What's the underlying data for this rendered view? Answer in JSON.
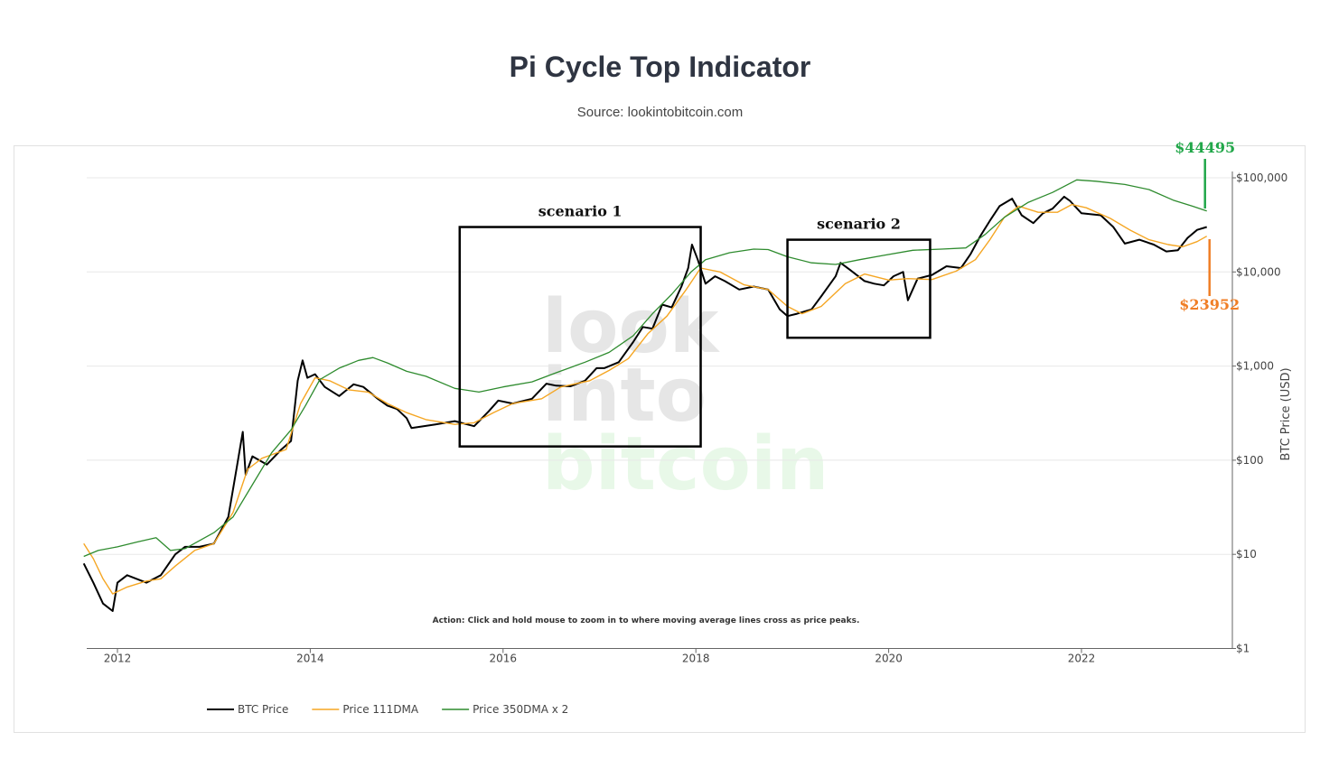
{
  "title": "Pi Cycle Top Indicator",
  "subtitle": "Source: lookintobitcoin.com",
  "chart_data": {
    "type": "line",
    "xlabel": "",
    "ylabel": "BTC Price (USD)",
    "yscale": "log",
    "ylim": [
      1,
      200000
    ],
    "xlim": [
      2011.65,
      2023.65
    ],
    "x_ticks": [
      "2012",
      "2014",
      "2016",
      "2018",
      "2020",
      "2022"
    ],
    "y_ticks": [
      "$1",
      "$10",
      "$100",
      "$1,000",
      "$10,000",
      "$100,000"
    ],
    "grid": true,
    "legend_position": "bottom-left",
    "series": [
      {
        "name": "BTC Price",
        "color": "#000000",
        "points": [
          [
            2011.65,
            8
          ],
          [
            2011.75,
            5
          ],
          [
            2011.85,
            3
          ],
          [
            2011.95,
            2.5
          ],
          [
            2012.0,
            5
          ],
          [
            2012.1,
            6
          ],
          [
            2012.3,
            5
          ],
          [
            2012.45,
            6
          ],
          [
            2012.6,
            10
          ],
          [
            2012.7,
            12
          ],
          [
            2012.85,
            12
          ],
          [
            2013.0,
            13
          ],
          [
            2013.15,
            25
          ],
          [
            2013.25,
            100
          ],
          [
            2013.3,
            200
          ],
          [
            2013.33,
            70
          ],
          [
            2013.4,
            110
          ],
          [
            2013.55,
            90
          ],
          [
            2013.7,
            130
          ],
          [
            2013.8,
            160
          ],
          [
            2013.87,
            700
          ],
          [
            2013.92,
            1150
          ],
          [
            2013.97,
            750
          ],
          [
            2014.05,
            820
          ],
          [
            2014.15,
            600
          ],
          [
            2014.3,
            480
          ],
          [
            2014.45,
            640
          ],
          [
            2014.55,
            600
          ],
          [
            2014.7,
            450
          ],
          [
            2014.8,
            380
          ],
          [
            2014.9,
            350
          ],
          [
            2015.0,
            280
          ],
          [
            2015.05,
            220
          ],
          [
            2015.3,
            240
          ],
          [
            2015.5,
            260
          ],
          [
            2015.7,
            230
          ],
          [
            2015.85,
            330
          ],
          [
            2015.95,
            430
          ],
          [
            2016.1,
            400
          ],
          [
            2016.3,
            450
          ],
          [
            2016.45,
            650
          ],
          [
            2016.55,
            620
          ],
          [
            2016.7,
            610
          ],
          [
            2016.85,
            700
          ],
          [
            2016.97,
            950
          ],
          [
            2017.05,
            950
          ],
          [
            2017.2,
            1100
          ],
          [
            2017.35,
            1800
          ],
          [
            2017.45,
            2600
          ],
          [
            2017.55,
            2500
          ],
          [
            2017.65,
            4500
          ],
          [
            2017.75,
            4200
          ],
          [
            2017.85,
            7000
          ],
          [
            2017.92,
            11000
          ],
          [
            2017.96,
            19500
          ],
          [
            2018.02,
            13500
          ],
          [
            2018.1,
            7500
          ],
          [
            2018.2,
            9000
          ],
          [
            2018.3,
            8000
          ],
          [
            2018.45,
            6500
          ],
          [
            2018.6,
            7000
          ],
          [
            2018.75,
            6500
          ],
          [
            2018.87,
            4000
          ],
          [
            2018.95,
            3400
          ],
          [
            2019.05,
            3600
          ],
          [
            2019.2,
            4000
          ],
          [
            2019.3,
            5500
          ],
          [
            2019.45,
            9000
          ],
          [
            2019.5,
            12500
          ],
          [
            2019.6,
            10500
          ],
          [
            2019.75,
            8000
          ],
          [
            2019.85,
            7500
          ],
          [
            2019.95,
            7200
          ],
          [
            2020.05,
            9000
          ],
          [
            2020.15,
            10000
          ],
          [
            2020.2,
            5000
          ],
          [
            2020.3,
            8500
          ],
          [
            2020.45,
            9300
          ],
          [
            2020.6,
            11500
          ],
          [
            2020.75,
            11000
          ],
          [
            2020.85,
            15500
          ],
          [
            2020.95,
            24000
          ],
          [
            2021.05,
            35000
          ],
          [
            2021.15,
            50000
          ],
          [
            2021.28,
            60000
          ],
          [
            2021.38,
            40000
          ],
          [
            2021.5,
            33000
          ],
          [
            2021.6,
            42000
          ],
          [
            2021.7,
            47000
          ],
          [
            2021.82,
            63000
          ],
          [
            2021.88,
            57000
          ],
          [
            2022.0,
            42000
          ],
          [
            2022.2,
            40000
          ],
          [
            2022.33,
            30000
          ],
          [
            2022.45,
            20000
          ],
          [
            2022.6,
            22000
          ],
          [
            2022.75,
            19500
          ],
          [
            2022.88,
            16500
          ],
          [
            2023.0,
            17000
          ],
          [
            2023.1,
            23000
          ],
          [
            2023.2,
            28000
          ],
          [
            2023.3,
            30000
          ]
        ]
      },
      {
        "name": "Price 111DMA",
        "color": "#f5a623",
        "points": [
          [
            2011.65,
            13
          ],
          [
            2011.75,
            9
          ],
          [
            2011.85,
            5.5
          ],
          [
            2011.95,
            3.8
          ],
          [
            2012.1,
            4.5
          ],
          [
            2012.3,
            5.2
          ],
          [
            2012.45,
            5.5
          ],
          [
            2012.6,
            7.5
          ],
          [
            2012.8,
            11
          ],
          [
            2013.0,
            13
          ],
          [
            2013.2,
            28
          ],
          [
            2013.35,
            80
          ],
          [
            2013.5,
            105
          ],
          [
            2013.75,
            130
          ],
          [
            2013.9,
            400
          ],
          [
            2014.05,
            750
          ],
          [
            2014.2,
            700
          ],
          [
            2014.4,
            560
          ],
          [
            2014.6,
            530
          ],
          [
            2014.8,
            400
          ],
          [
            2015.0,
            320
          ],
          [
            2015.2,
            270
          ],
          [
            2015.5,
            240
          ],
          [
            2015.7,
            250
          ],
          [
            2015.9,
            320
          ],
          [
            2016.1,
            400
          ],
          [
            2016.4,
            450
          ],
          [
            2016.6,
            600
          ],
          [
            2016.9,
            700
          ],
          [
            2017.1,
            900
          ],
          [
            2017.3,
            1200
          ],
          [
            2017.5,
            2200
          ],
          [
            2017.7,
            3400
          ],
          [
            2017.9,
            6500
          ],
          [
            2018.05,
            11000
          ],
          [
            2018.25,
            10000
          ],
          [
            2018.5,
            7300
          ],
          [
            2018.75,
            6500
          ],
          [
            2018.95,
            4300
          ],
          [
            2019.1,
            3600
          ],
          [
            2019.3,
            4300
          ],
          [
            2019.55,
            7500
          ],
          [
            2019.75,
            9500
          ],
          [
            2020.0,
            8200
          ],
          [
            2020.2,
            8500
          ],
          [
            2020.45,
            8300
          ],
          [
            2020.7,
            10200
          ],
          [
            2020.9,
            13500
          ],
          [
            2021.05,
            22000
          ],
          [
            2021.2,
            38000
          ],
          [
            2021.35,
            50000
          ],
          [
            2021.55,
            43000
          ],
          [
            2021.75,
            43000
          ],
          [
            2021.9,
            52000
          ],
          [
            2022.05,
            48000
          ],
          [
            2022.3,
            37000
          ],
          [
            2022.5,
            28000
          ],
          [
            2022.7,
            22000
          ],
          [
            2022.9,
            19500
          ],
          [
            2023.05,
            18500
          ],
          [
            2023.2,
            21000
          ],
          [
            2023.3,
            23952
          ]
        ]
      },
      {
        "name": "Price 350DMA x 2",
        "color": "#2e8b2e",
        "points": [
          [
            2011.65,
            9.5
          ],
          [
            2011.8,
            11
          ],
          [
            2012.0,
            12
          ],
          [
            2012.2,
            13.5
          ],
          [
            2012.4,
            15
          ],
          [
            2012.55,
            11
          ],
          [
            2012.7,
            11.5
          ],
          [
            2013.0,
            17
          ],
          [
            2013.2,
            25
          ],
          [
            2013.4,
            55
          ],
          [
            2013.6,
            120
          ],
          [
            2013.8,
            210
          ],
          [
            2013.95,
            380
          ],
          [
            2014.1,
            720
          ],
          [
            2014.3,
            950
          ],
          [
            2014.5,
            1150
          ],
          [
            2014.65,
            1230
          ],
          [
            2014.8,
            1080
          ],
          [
            2015.0,
            880
          ],
          [
            2015.2,
            780
          ],
          [
            2015.5,
            580
          ],
          [
            2015.75,
            530
          ],
          [
            2016.0,
            600
          ],
          [
            2016.3,
            680
          ],
          [
            2016.55,
            850
          ],
          [
            2016.85,
            1100
          ],
          [
            2017.1,
            1400
          ],
          [
            2017.35,
            2100
          ],
          [
            2017.55,
            3600
          ],
          [
            2017.75,
            5800
          ],
          [
            2017.95,
            10000
          ],
          [
            2018.1,
            13500
          ],
          [
            2018.35,
            16000
          ],
          [
            2018.6,
            17500
          ],
          [
            2018.75,
            17300
          ],
          [
            2018.95,
            14500
          ],
          [
            2019.2,
            12500
          ],
          [
            2019.45,
            12000
          ],
          [
            2019.7,
            13500
          ],
          [
            2019.95,
            15000
          ],
          [
            2020.25,
            17000
          ],
          [
            2020.55,
            17500
          ],
          [
            2020.8,
            18000
          ],
          [
            2021.0,
            25000
          ],
          [
            2021.2,
            38000
          ],
          [
            2021.45,
            55000
          ],
          [
            2021.7,
            70000
          ],
          [
            2021.95,
            95000
          ],
          [
            2022.15,
            92000
          ],
          [
            2022.45,
            85000
          ],
          [
            2022.7,
            75000
          ],
          [
            2022.95,
            58000
          ],
          [
            2023.15,
            50000
          ],
          [
            2023.3,
            44495
          ]
        ]
      }
    ],
    "annotations": {
      "scenario_boxes": [
        {
          "label": "scenario 1",
          "x0": 2015.55,
          "x1": 2018.05,
          "y0": 140,
          "y1": 30000
        },
        {
          "label": "scenario 2",
          "x0": 2018.95,
          "x1": 2020.43,
          "y0": 2000,
          "y1": 22000
        }
      ],
      "callout_350": {
        "text": "$44495",
        "color": "#22a74a"
      },
      "callout_111": {
        "text": "$23952",
        "color": "#f07e26"
      },
      "action_note": "Action: Click and hold mouse to zoom in to where moving average lines cross as price peaks."
    },
    "watermark": {
      "lines": [
        "look",
        "into",
        "bitcoin"
      ],
      "colors": [
        "#e6e6e6",
        "#e6e6e6",
        "#e8f8e8"
      ]
    }
  }
}
